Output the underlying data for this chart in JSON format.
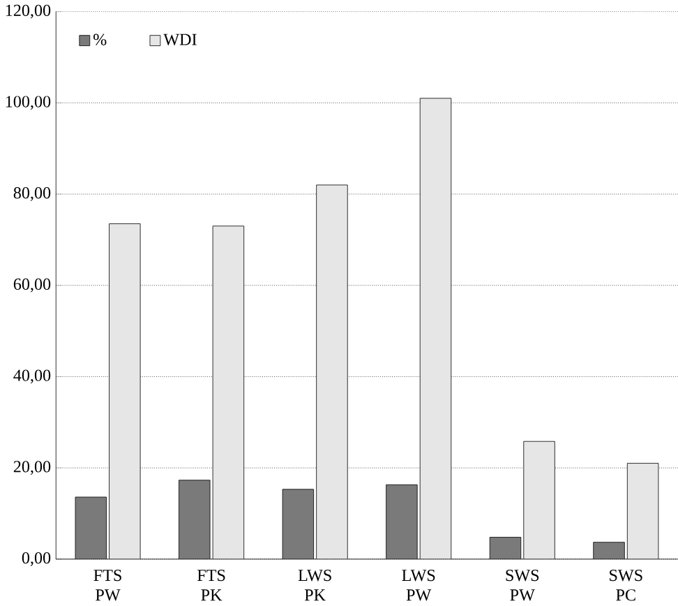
{
  "chart_data": {
    "type": "bar",
    "categories": [
      "FTS PW",
      "FTS PK",
      "LWS PK",
      "LWS PW",
      "SWS PW",
      "SWS PC"
    ],
    "series": [
      {
        "name": "%",
        "color": "#7a7a7a",
        "values": [
          13.6,
          17.3,
          15.3,
          16.3,
          4.8,
          3.7
        ]
      },
      {
        "name": "WDI",
        "color": "#e6e6e6",
        "values": [
          73.5,
          73,
          82,
          101,
          25.8,
          21
        ]
      }
    ],
    "ylim": [
      0,
      120
    ],
    "yticks": [
      {
        "value": 0,
        "label": "0,00"
      },
      {
        "value": 20,
        "label": "20,00"
      },
      {
        "value": 40,
        "label": "40,00"
      },
      {
        "value": 60,
        "label": "60,00"
      },
      {
        "value": 80,
        "label": "80,00"
      },
      {
        "value": 100,
        "label": "100,00"
      },
      {
        "value": 120,
        "label": "120,00"
      }
    ],
    "grid": "y",
    "legend": "top left"
  }
}
